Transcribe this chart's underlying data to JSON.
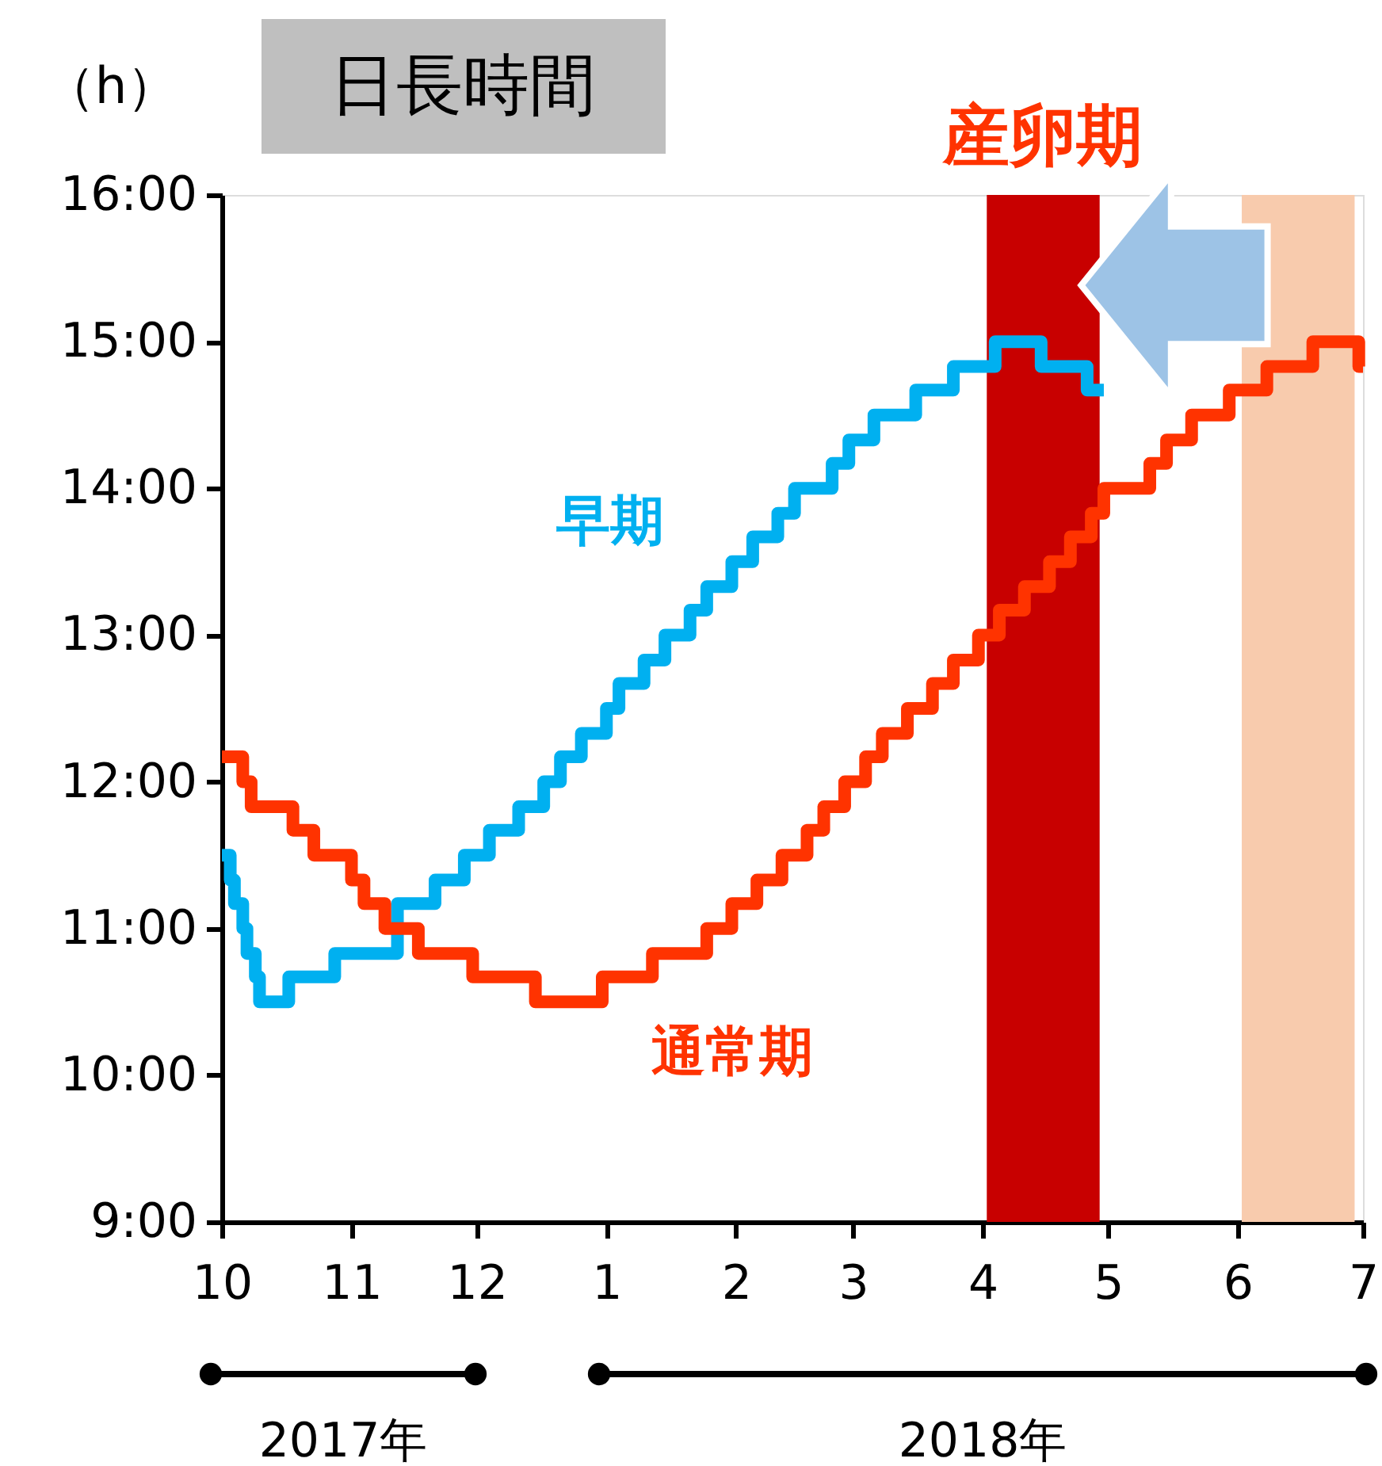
{
  "chart_data": {
    "type": "step",
    "title": "日長時間",
    "ylabel": "（h）",
    "xlim": [
      "2017-10-01",
      "2018-07-01"
    ],
    "xticks": [
      {
        "value": "2017-10-01",
        "label": "10"
      },
      {
        "value": "2017-11-01",
        "label": "11"
      },
      {
        "value": "2017-12-01",
        "label": "12"
      },
      {
        "value": "2018-01-01",
        "label": "1"
      },
      {
        "value": "2018-02-01",
        "label": "2"
      },
      {
        "value": "2018-03-01",
        "label": "3"
      },
      {
        "value": "2018-04-01",
        "label": "4"
      },
      {
        "value": "2018-05-01",
        "label": "5"
      },
      {
        "value": "2018-06-01",
        "label": "6"
      },
      {
        "value": "2018-07-01",
        "label": "7"
      }
    ],
    "ylim": [
      9,
      16
    ],
    "yticks": [
      {
        "value": 9,
        "label": "9:00"
      },
      {
        "value": 10,
        "label": "10:00"
      },
      {
        "value": 11,
        "label": "11:00"
      },
      {
        "value": 12,
        "label": "12:00"
      },
      {
        "value": 13,
        "label": "13:00"
      },
      {
        "value": 14,
        "label": "14:00"
      },
      {
        "value": 15,
        "label": "15:00"
      },
      {
        "value": 16,
        "label": "16:00"
      }
    ],
    "series": [
      {
        "name": "早期",
        "color": "#00b0f0",
        "x": [
          "2017-10-01",
          "2017-10-03",
          "2017-10-04",
          "2017-10-06",
          "2017-10-07",
          "2017-10-09",
          "2017-10-10",
          "2017-10-17",
          "2017-10-28",
          "2017-11-12",
          "2017-11-21",
          "2017-11-28",
          "2017-12-04",
          "2017-12-11",
          "2017-12-17",
          "2017-12-21",
          "2017-12-26",
          "2018-01-01",
          "2018-01-04",
          "2018-01-10",
          "2018-01-15",
          "2018-01-21",
          "2018-01-25",
          "2018-01-31",
          "2018-02-05",
          "2018-02-11",
          "2018-02-15",
          "2018-02-24",
          "2018-02-28",
          "2018-03-06",
          "2018-03-16",
          "2018-03-25",
          "2018-04-04",
          "2018-04-15",
          "2018-04-26",
          "2018-04-30"
        ],
        "values": [
          11.5,
          11.33,
          11.17,
          11.0,
          10.83,
          10.67,
          10.5,
          10.67,
          10.83,
          11.17,
          11.33,
          11.5,
          11.67,
          11.83,
          12.0,
          12.17,
          12.33,
          12.5,
          12.67,
          12.83,
          13.0,
          13.17,
          13.33,
          13.5,
          13.67,
          13.83,
          14.0,
          14.17,
          14.33,
          14.5,
          14.67,
          14.83,
          15.0,
          14.83,
          14.67,
          14.67
        ]
      },
      {
        "name": "通常期",
        "color": "#ff3300",
        "x": [
          "2017-10-01",
          "2017-10-06",
          "2017-10-08",
          "2017-10-18",
          "2017-10-23",
          "2017-11-01",
          "2017-11-04",
          "2017-11-09",
          "2017-11-17",
          "2017-11-30",
          "2017-12-15",
          "2017-12-31",
          "2018-01-12",
          "2018-01-25",
          "2018-01-31",
          "2018-02-06",
          "2018-02-12",
          "2018-02-18",
          "2018-02-22",
          "2018-02-27",
          "2018-03-04",
          "2018-03-08",
          "2018-03-14",
          "2018-03-20",
          "2018-03-25",
          "2018-03-31",
          "2018-04-05",
          "2018-04-11",
          "2018-04-17",
          "2018-04-22",
          "2018-04-27",
          "2018-04-30",
          "2018-05-11",
          "2018-05-15",
          "2018-05-21",
          "2018-05-30",
          "2018-06-08",
          "2018-06-19",
          "2018-06-30",
          "2018-07-01"
        ],
        "values": [
          12.17,
          12.0,
          11.83,
          11.67,
          11.5,
          11.33,
          11.17,
          11.0,
          10.83,
          10.67,
          10.5,
          10.67,
          10.83,
          11.0,
          11.17,
          11.33,
          11.5,
          11.67,
          11.83,
          12.0,
          12.17,
          12.33,
          12.5,
          12.67,
          12.83,
          13.0,
          13.17,
          13.33,
          13.5,
          13.67,
          13.83,
          14.0,
          14.17,
          14.33,
          14.5,
          14.67,
          14.83,
          15.0,
          14.83,
          14.83
        ]
      }
    ],
    "bands": [
      {
        "axis": "x",
        "from": "2018-04-02",
        "to": "2018-04-29",
        "label": "産卵期",
        "color": "#c80000"
      },
      {
        "axis": "x",
        "from": "2018-06-02",
        "to": "2018-06-29",
        "color": "#f8cbad"
      }
    ],
    "annotations": [
      "2017年",
      "2018年"
    ],
    "grid": false,
    "legend": false
  }
}
